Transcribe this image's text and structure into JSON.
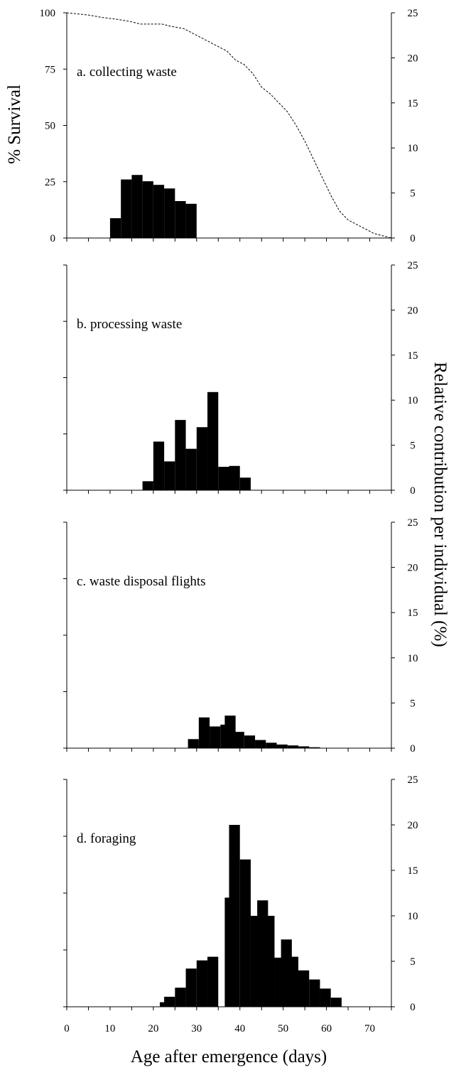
{
  "chart_data": {
    "type": "bar",
    "x_axis": {
      "label": "Age after emergence (days)",
      "range": [
        0,
        75
      ],
      "ticks": [
        0,
        10,
        20,
        30,
        40,
        50,
        60,
        70
      ],
      "minor_tick_step": 5
    },
    "left_axis": {
      "label": "% Survival",
      "range": [
        0,
        100
      ],
      "ticks": [
        0,
        25,
        50,
        75,
        100
      ],
      "tick_labels_on_panel": "a"
    },
    "right_axis": {
      "label": "Relative contribution per individual (%)",
      "range": [
        0,
        25
      ],
      "ticks": [
        0,
        5,
        10,
        15,
        20,
        25
      ]
    },
    "bin_width": 2.5,
    "grid": false,
    "panels": [
      {
        "id": "a",
        "title": "a. collecting waste",
        "bars": [
          [
            10,
            2.2
          ],
          [
            12.5,
            6.5
          ],
          [
            15,
            7.0
          ],
          [
            17.5,
            6.3
          ],
          [
            20,
            5.9
          ],
          [
            22.5,
            5.5
          ],
          [
            25,
            4.1
          ],
          [
            27.5,
            3.8
          ]
        ],
        "survival": [
          [
            0,
            100
          ],
          [
            5,
            99
          ],
          [
            8,
            98
          ],
          [
            12,
            97
          ],
          [
            15,
            96
          ],
          [
            17,
            95
          ],
          [
            22,
            95
          ],
          [
            24,
            94
          ],
          [
            27,
            93
          ],
          [
            29,
            91
          ],
          [
            31,
            89
          ],
          [
            33,
            87
          ],
          [
            35,
            85
          ],
          [
            37,
            83
          ],
          [
            39,
            79
          ],
          [
            41,
            77
          ],
          [
            43,
            73
          ],
          [
            45,
            67
          ],
          [
            47,
            64
          ],
          [
            49,
            60
          ],
          [
            51,
            56
          ],
          [
            53,
            50
          ],
          [
            55,
            43
          ],
          [
            57,
            35
          ],
          [
            59,
            27
          ],
          [
            61,
            19
          ],
          [
            63,
            12
          ],
          [
            65,
            8
          ],
          [
            67,
            6
          ],
          [
            69,
            4
          ],
          [
            71,
            2
          ],
          [
            73,
            1
          ],
          [
            75,
            0
          ]
        ]
      },
      {
        "id": "b",
        "title": "b. processing waste",
        "bars": [
          [
            17.5,
            1.0
          ],
          [
            20,
            5.4
          ],
          [
            22.5,
            3.2
          ],
          [
            25,
            7.8
          ],
          [
            27.5,
            4.6
          ],
          [
            30,
            7.0
          ],
          [
            32.5,
            10.9
          ],
          [
            35,
            2.6
          ],
          [
            37.5,
            2.7
          ],
          [
            40,
            1.4
          ]
        ]
      },
      {
        "id": "c",
        "title": "c. waste disposal flights",
        "bars": [
          [
            28,
            1.0
          ],
          [
            30.5,
            3.4
          ],
          [
            33,
            2.4
          ],
          [
            35.5,
            2.6
          ],
          [
            36.5,
            3.6
          ],
          [
            38.5,
            1.8
          ],
          [
            41,
            1.4
          ],
          [
            43.5,
            0.9
          ],
          [
            46,
            0.6
          ],
          [
            48.5,
            0.4
          ],
          [
            51,
            0.3
          ],
          [
            53.5,
            0.2
          ],
          [
            56,
            0.1
          ]
        ]
      },
      {
        "id": "d",
        "title": "d. foraging",
        "bars": [
          [
            21.5,
            0.5
          ],
          [
            22.5,
            1.1
          ],
          [
            25,
            2.1
          ],
          [
            27.5,
            4.2
          ],
          [
            30,
            5.1
          ],
          [
            32.5,
            5.5
          ],
          [
            36.5,
            12.0
          ],
          [
            37.5,
            20.0
          ],
          [
            40,
            16.2
          ],
          [
            42.5,
            10.0
          ],
          [
            44,
            11.7
          ],
          [
            45.5,
            10.0
          ],
          [
            48,
            5.4
          ],
          [
            49.5,
            7.4
          ],
          [
            51,
            5.5
          ],
          [
            53.5,
            4.0
          ],
          [
            56,
            3.0
          ],
          [
            58.5,
            2.0
          ],
          [
            61,
            1.0
          ]
        ]
      }
    ]
  }
}
